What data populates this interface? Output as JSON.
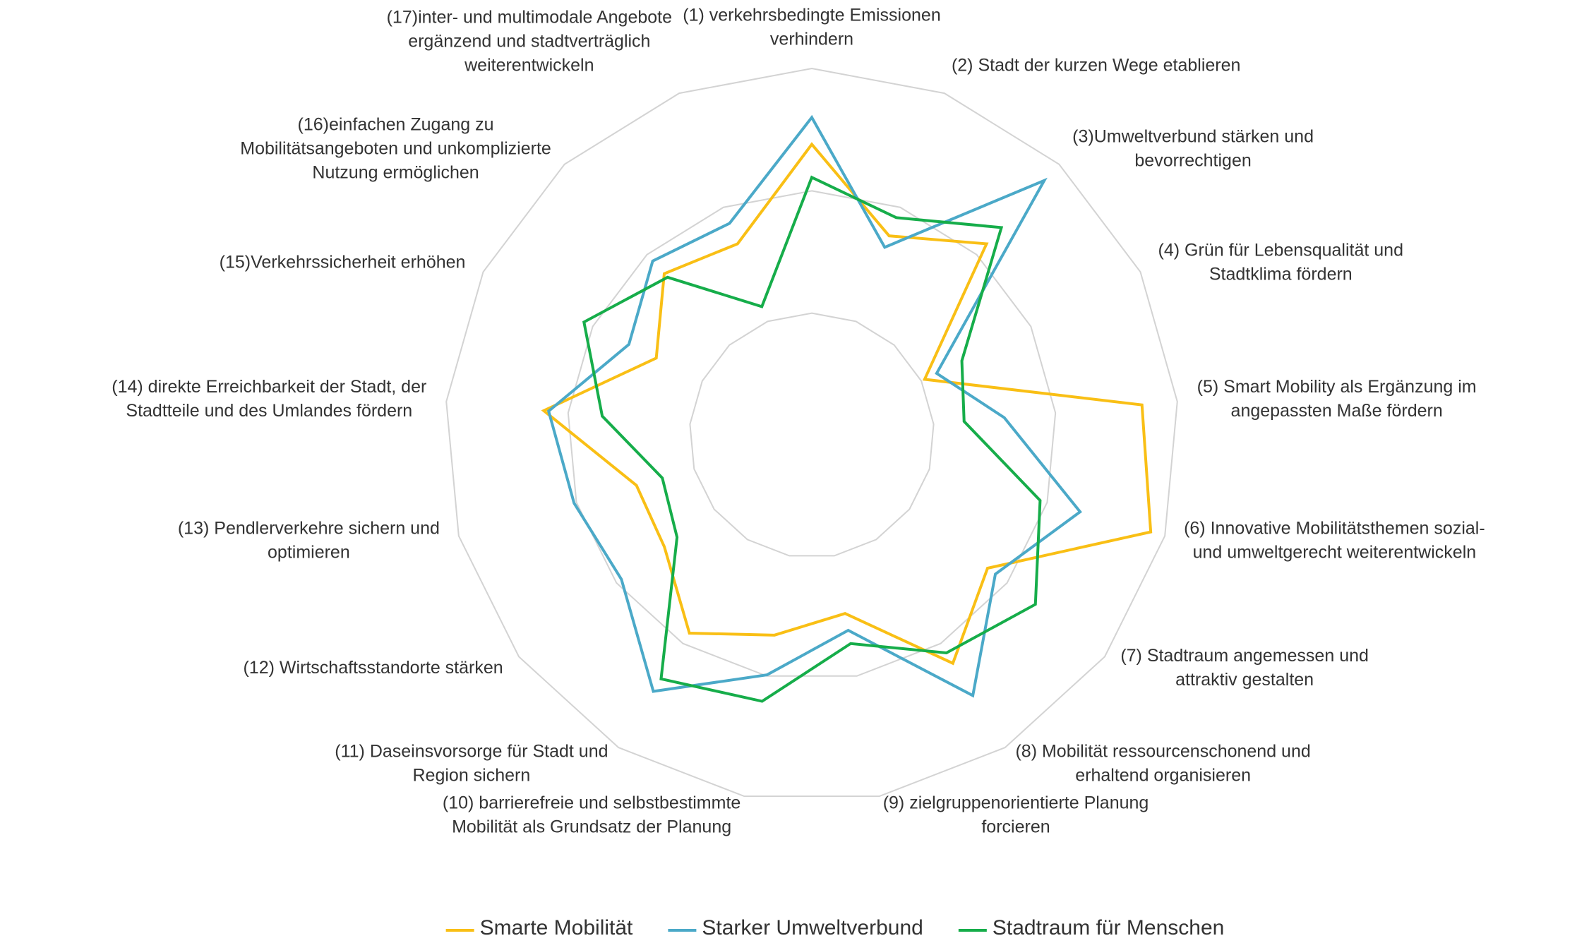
{
  "chart_data": {
    "type": "radar",
    "categories": [
      [
        "(1) verkehrsbedingte Emissionen",
        "verhindern"
      ],
      [
        "(2)  Stadt der kurzen Wege etablieren"
      ],
      [
        "(3)Umweltverbund stärken und",
        "bevorrechtigen"
      ],
      [
        "(4) Grün für Lebensqualität und",
        "Stadtklima fördern"
      ],
      [
        "(5) Smart Mobility als Ergänzung im",
        "angepassten Maße fördern"
      ],
      [
        "(6) Innovative Mobilitätsthemen sozial-",
        "und umweltgerecht weiterentwickeln"
      ],
      [
        "(7) Stadtraum angemessen und",
        "attraktiv gestalten"
      ],
      [
        "(8) Mobilität ressourcenschonend und",
        "erhaltend organisieren"
      ],
      [
        "(9) zielgruppenorientierte Planung",
        "forcieren"
      ],
      [
        "(10) barrierefreie und selbstbestimmte",
        "Mobilität als Grundsatz der Planung"
      ],
      [
        "(11) Daseinsvorsorge für Stadt und",
        "Region sichern"
      ],
      [
        "(12) Wirtschaftsstandorte stärken"
      ],
      [
        "(13) Pendlerverkehre sichern und",
        "optimieren"
      ],
      [
        "(14) direkte Erreichbarkeit der Stadt, der",
        "Stadtteile und des Umlandes fördern"
      ],
      [
        "(15)Verkehrssicherheit erhöhen"
      ],
      [
        "(16)einfachen Zugang zu",
        "Mobilitätsangeboten und unkomplizierte",
        "Nutzung ermöglichen"
      ],
      [
        "(17)inter- und multimodale Angebote",
        "ergänzend und stadtverträglich",
        "weiterentwickeln"
      ]
    ],
    "series": [
      {
        "name": "Smarte Mobilität",
        "color": "#f9bf15",
        "values": [
          2.38,
          1.75,
          2.12,
          1.03,
          2.71,
          2.88,
          1.8,
          2.19,
          1.48,
          1.66,
          1.9,
          1.51,
          1.49,
          2.2,
          1.42,
          1.79,
          1.68
        ]
      },
      {
        "name": "Starker Umweltverbund",
        "color": "#4ba9c8",
        "values": [
          2.6,
          1.65,
          2.82,
          1.14,
          1.58,
          2.28,
          1.88,
          2.5,
          1.62,
          1.99,
          2.46,
          1.95,
          2.02,
          2.16,
          1.67,
          1.93,
          1.86
        ]
      },
      {
        "name": "Stadtraum für Menschen",
        "color": "#16ad4a",
        "values": [
          2.11,
          1.91,
          2.3,
          1.37,
          1.25,
          1.94,
          2.29,
          2.09,
          1.73,
          2.21,
          2.34,
          1.38,
          1.27,
          1.72,
          2.08,
          1.75,
          1.13
        ]
      }
    ],
    "rlim": [
      0,
      3
    ],
    "rticks": [
      1,
      2,
      3
    ],
    "grid": true,
    "legend": "bottom"
  }
}
